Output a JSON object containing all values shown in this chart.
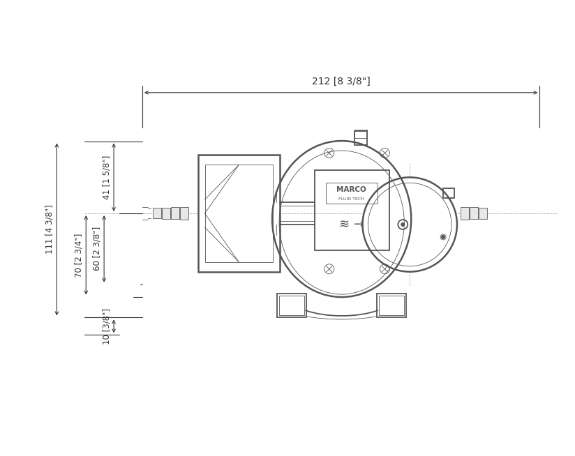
{
  "bg_color": "#ffffff",
  "line_color": "#555555",
  "dim_color": "#333333",
  "dim_width": "212 [8 3/8\"]",
  "dim_h1": "41 [1 5/8\"]",
  "dim_h2": "111 [4 3/8\"]",
  "dim_h3": "70 [2 3/4\"]",
  "dim_h4": "60 [2 3/8\"]",
  "dim_h5": "10 [3/8\"]",
  "figsize": [
    8.24,
    6.54
  ],
  "dpi": 100
}
